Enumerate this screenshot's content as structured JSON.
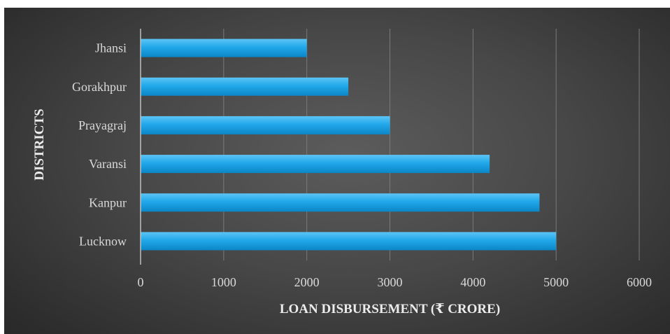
{
  "chart_data": {
    "type": "bar",
    "orientation": "horizontal",
    "categories": [
      "Lucknow",
      "Kanpur",
      "Varansi",
      "Prayagraj",
      "Gorakhpur",
      "Jhansi"
    ],
    "values": [
      5000,
      4800,
      4200,
      3000,
      2500,
      2000
    ],
    "xlabel": "LOAN DISBURSEMENT (₹ CRORE)",
    "ylabel": "DISTRICTS",
    "xlim": [
      0,
      6000
    ],
    "xticks": [
      "0",
      "1000",
      "2000",
      "3000",
      "4000",
      "5000",
      "6000"
    ],
    "grid": true,
    "legend": "none",
    "colors": {
      "bar": "#1fa6e8",
      "bar_light": "#5cc4f5",
      "bar_dark": "#0b86c6",
      "grid": "#7a7a7a",
      "axis": "#bfbfbf"
    }
  }
}
